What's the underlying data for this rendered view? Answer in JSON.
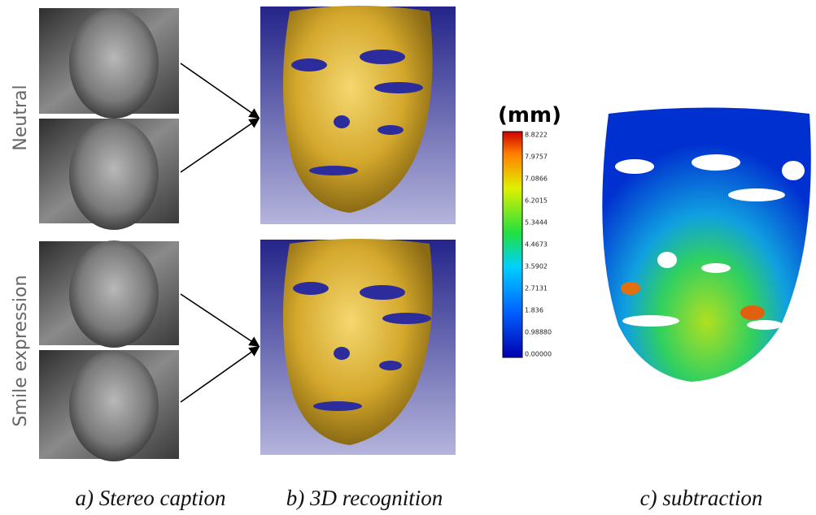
{
  "labels": {
    "neutral": "Neutral",
    "smile": "Smile expression"
  },
  "colorbar": {
    "unit": "(mm)",
    "ticks": [
      "8.8222",
      "7.9757",
      "7.0866",
      "6.2015",
      "5.3444",
      "4.4673",
      "3.5902",
      "2.7131",
      "1.836",
      "0.98880",
      "0.00000"
    ]
  },
  "captions": [
    "a) Stereo caption",
    "b) 3D recognition",
    "c) subtraction"
  ]
}
